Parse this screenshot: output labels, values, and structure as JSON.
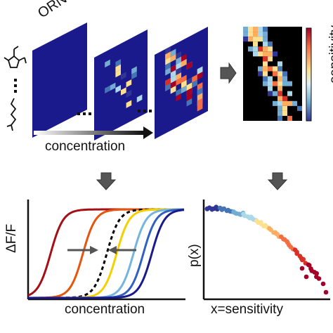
{
  "labels": {
    "orns": "ORNs",
    "concentration_top": "concentration",
    "sensitivity": "sensitivity",
    "dff": "ΔF/F",
    "concentration_bottom": "concentration",
    "px": "p(x)",
    "x_sensitivity": "x=sensitivity"
  },
  "colors": {
    "background_dark_blue": "#1a1a8c",
    "arrow_gray": "#555555",
    "curve_colors": [
      "#a50f15",
      "#e6550d",
      "#000000",
      "#f5d000",
      "#74b4e0",
      "#3060c0",
      "#1a1a8c"
    ]
  },
  "icons": {
    "odorant_ring": "odorant-molecule-ring-icon",
    "odorant_chain": "odorant-molecule-chain-icon",
    "down_arrow": "down-arrow-icon",
    "right_arrow": "right-arrow-icon"
  }
}
